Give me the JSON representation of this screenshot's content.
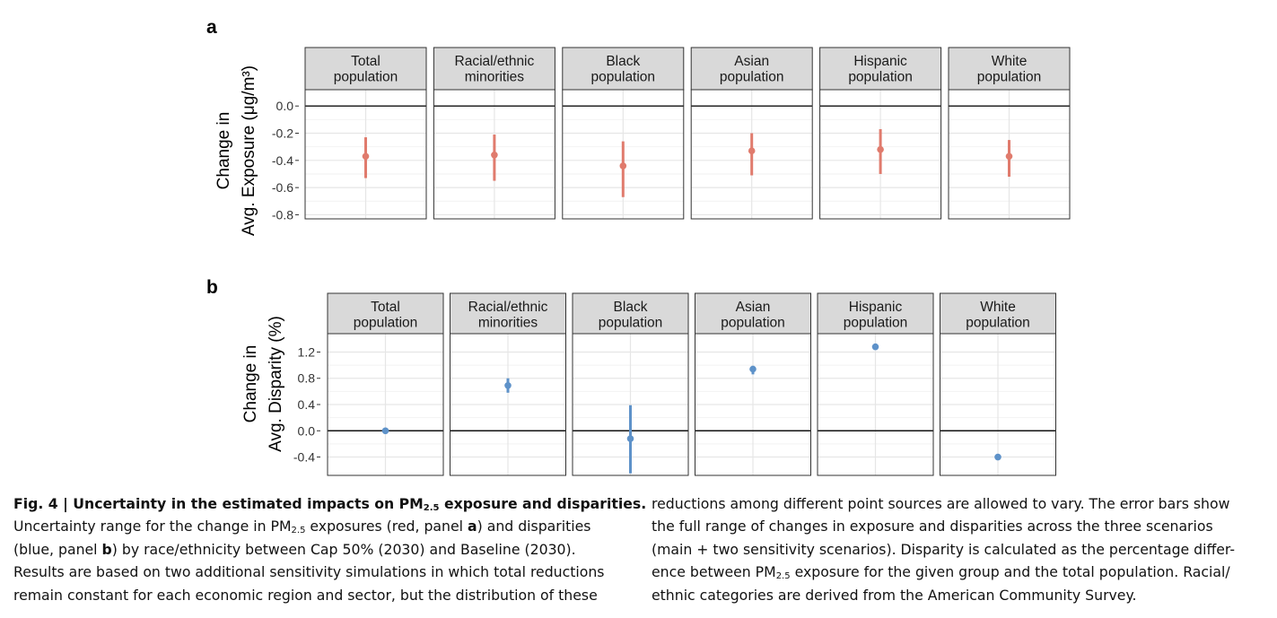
{
  "figure": {
    "panels": [
      {
        "letter": "a",
        "ylabel_line1": "Change in",
        "ylabel_line2": "Avg. Exposure (μg/m³)",
        "color": "#e07b6d"
      },
      {
        "letter": "b",
        "ylabel_line1": "Change in",
        "ylabel_line2": "Avg. Disparity (%)",
        "color": "#5e92c9"
      }
    ]
  },
  "chart_data": [
    {
      "type": "scatter",
      "panel": "a",
      "error_bars": true,
      "facets": [
        [
          "Total",
          "population"
        ],
        [
          "Racial/ethnic",
          "minorities"
        ],
        [
          "Black",
          "population"
        ],
        [
          "Asian",
          "population"
        ],
        [
          "Hispanic",
          "population"
        ],
        [
          "White",
          "population"
        ]
      ],
      "values": [
        -0.37,
        -0.36,
        -0.44,
        -0.33,
        -0.32,
        -0.37
      ],
      "lower": [
        -0.53,
        -0.55,
        -0.67,
        -0.51,
        -0.5,
        -0.52
      ],
      "upper": [
        -0.23,
        -0.21,
        -0.26,
        -0.2,
        -0.17,
        -0.25
      ],
      "yticks": [
        "0.0",
        "-0.2",
        "-0.4",
        "-0.6",
        "-0.8"
      ],
      "ytick_values": [
        0,
        -0.2,
        -0.4,
        -0.6,
        -0.8
      ],
      "ylim": [
        -0.83,
        0.12
      ],
      "hline": 0,
      "color": "#e07b6d"
    },
    {
      "type": "scatter",
      "panel": "b",
      "error_bars": true,
      "facets": [
        [
          "Total",
          "population"
        ],
        [
          "Racial/ethnic",
          "minorities"
        ],
        [
          "Black",
          "population"
        ],
        [
          "Asian",
          "population"
        ],
        [
          "Hispanic",
          "population"
        ],
        [
          "White",
          "population"
        ]
      ],
      "values": [
        0.0,
        0.69,
        -0.12,
        0.94,
        1.28,
        -0.4
      ],
      "lower": [
        -0.01,
        0.58,
        -0.65,
        0.86,
        1.24,
        -0.42
      ],
      "upper": [
        0.01,
        0.8,
        0.39,
        0.99,
        1.33,
        -0.38
      ],
      "yticks": [
        "1.2",
        "0.8",
        "0.4",
        "0.0",
        "-0.4"
      ],
      "ytick_values": [
        1.2,
        0.8,
        0.4,
        0.0,
        -0.4
      ],
      "ylim": [
        -0.68,
        1.48
      ],
      "hline": 0,
      "color": "#5e92c9"
    }
  ],
  "caption": {
    "title_prefix": "Fig. 4 | Uncertainty in the estimated impacts on PM",
    "title_sub": "2.5",
    "title_suffix": " exposure and disparities.",
    "l2_a": "Uncertainty range for the change in PM",
    "l2_sub": "2.5",
    "l2_b": " exposures (red, panel ",
    "l2_bold": "a",
    "l2_c": ") and disparities",
    "l3_a": "(blue, panel ",
    "l3_bold": "b",
    "l3_b": ") by race/ethnicity between Cap 50% (2030) and Baseline (2030).",
    "l4": "Results are based on two additional sensitivity simulations in which total reductions",
    "l5": "remain constant for each economic region and sector, but the distribution of these",
    "r1": "reductions among different point sources are allowed to vary. The error bars show",
    "r2": "the full range of changes in exposure and disparities across the three scenarios",
    "r3": "(main + two sensitivity scenarios). Disparity is calculated as the percentage differ-",
    "r4_a": "ence between PM",
    "r4_sub": "2.5",
    "r4_b": " exposure for the given group and the total population. Racial/",
    "r5": "ethnic categories are derived from the American Community Survey.",
    "sub_size": "10px"
  }
}
